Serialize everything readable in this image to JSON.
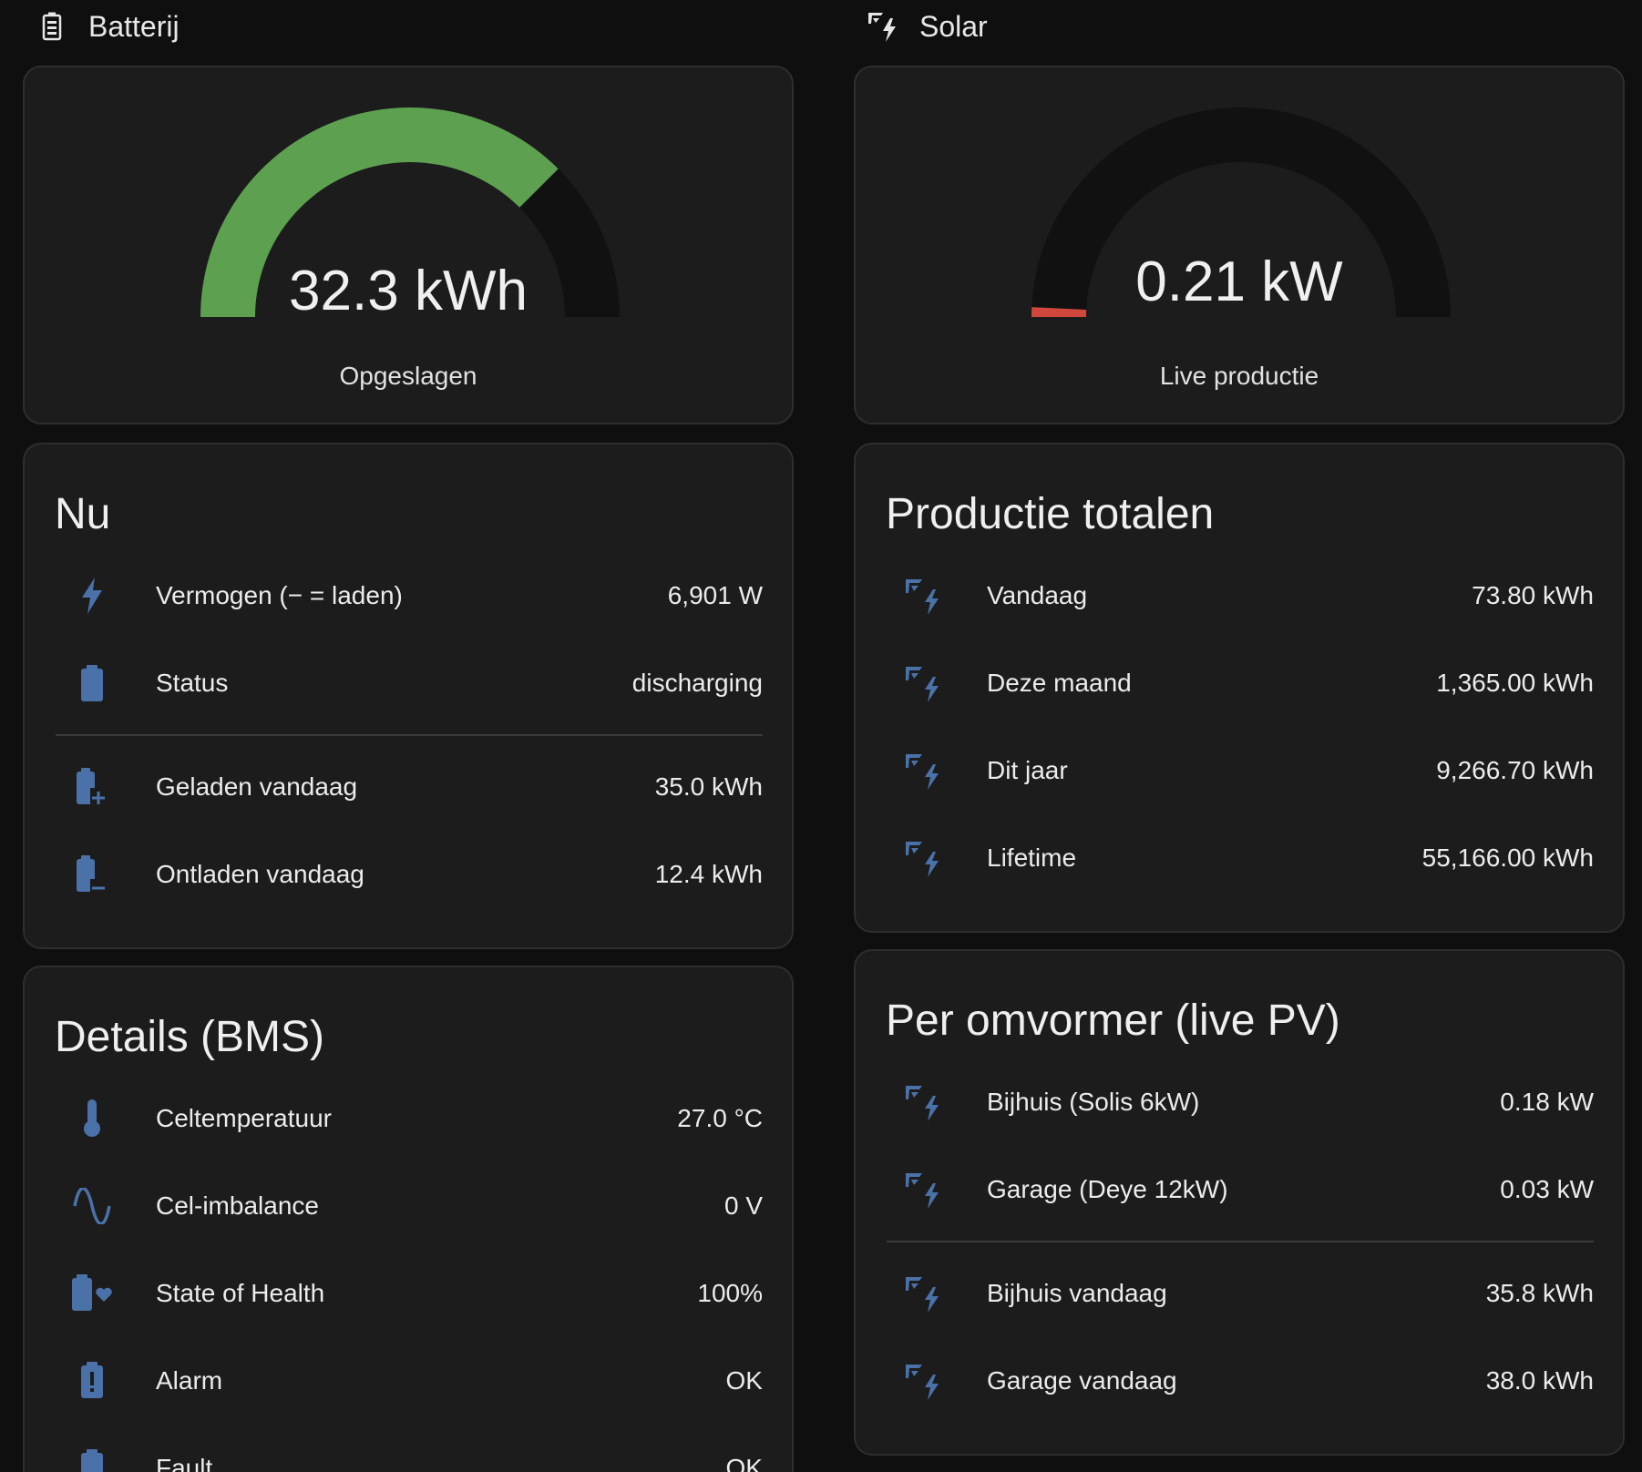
{
  "battery": {
    "header": "Batterij",
    "gauge": {
      "value_text": "32.3 kWh",
      "label": "Opgeslagen",
      "fill_fraction": 0.75,
      "color": "#5da050"
    },
    "nu": {
      "title": "Nu",
      "rows": [
        {
          "icon": "lightning-bolt-icon",
          "label": "Vermogen (− = laden)",
          "value": "6,901 W"
        },
        {
          "icon": "battery-icon",
          "label": "Status",
          "value": "discharging"
        }
      ],
      "rows2": [
        {
          "icon": "battery-plus-icon",
          "label": "Geladen vandaag",
          "value": "35.0 kWh"
        },
        {
          "icon": "battery-minus-icon",
          "label": "Ontladen vandaag",
          "value": "12.4 kWh"
        }
      ]
    },
    "details": {
      "title": "Details (BMS)",
      "rows": [
        {
          "icon": "thermometer-icon",
          "label": "Celtemperatuur",
          "value": "27.0 °C"
        },
        {
          "icon": "sine-wave-icon",
          "label": "Cel-imbalance",
          "value": "0 V"
        },
        {
          "icon": "battery-heart-icon",
          "label": "State of Health",
          "value": "100%"
        },
        {
          "icon": "battery-alert-icon",
          "label": "Alarm",
          "value": "OK"
        },
        {
          "icon": "battery-fault-icon",
          "label": "Fault",
          "value": "OK"
        }
      ]
    }
  },
  "solar": {
    "header": "Solar",
    "gauge": {
      "value_text": "0.21 kW",
      "label": "Live productie",
      "fill_fraction": 0.015,
      "color": "#d0473c"
    },
    "production": {
      "title": "Productie totalen",
      "rows": [
        {
          "icon": "solar-power-icon",
          "label": "Vandaag",
          "value": "73.80 kWh"
        },
        {
          "icon": "solar-power-icon",
          "label": "Deze maand",
          "value": "1,365.00 kWh"
        },
        {
          "icon": "solar-power-icon",
          "label": "Dit jaar",
          "value": "9,266.70 kWh"
        },
        {
          "icon": "solar-power-icon",
          "label": "Lifetime",
          "value": "55,166.00 kWh"
        }
      ]
    },
    "inverters": {
      "title": "Per omvormer (live PV)",
      "rows": [
        {
          "icon": "solar-power-icon",
          "label": "Bijhuis (Solis 6kW)",
          "value": "0.18 kW"
        },
        {
          "icon": "solar-power-icon",
          "label": "Garage (Deye 12kW)",
          "value": "0.03 kW"
        }
      ],
      "rows2": [
        {
          "icon": "solar-power-icon",
          "label": "Bijhuis vandaag",
          "value": "35.8 kWh"
        },
        {
          "icon": "solar-power-icon",
          "label": "Garage vandaag",
          "value": "38.0 kWh"
        }
      ]
    }
  },
  "colors": {
    "icon": "#4a72a8",
    "gauge_track": "#111112"
  }
}
